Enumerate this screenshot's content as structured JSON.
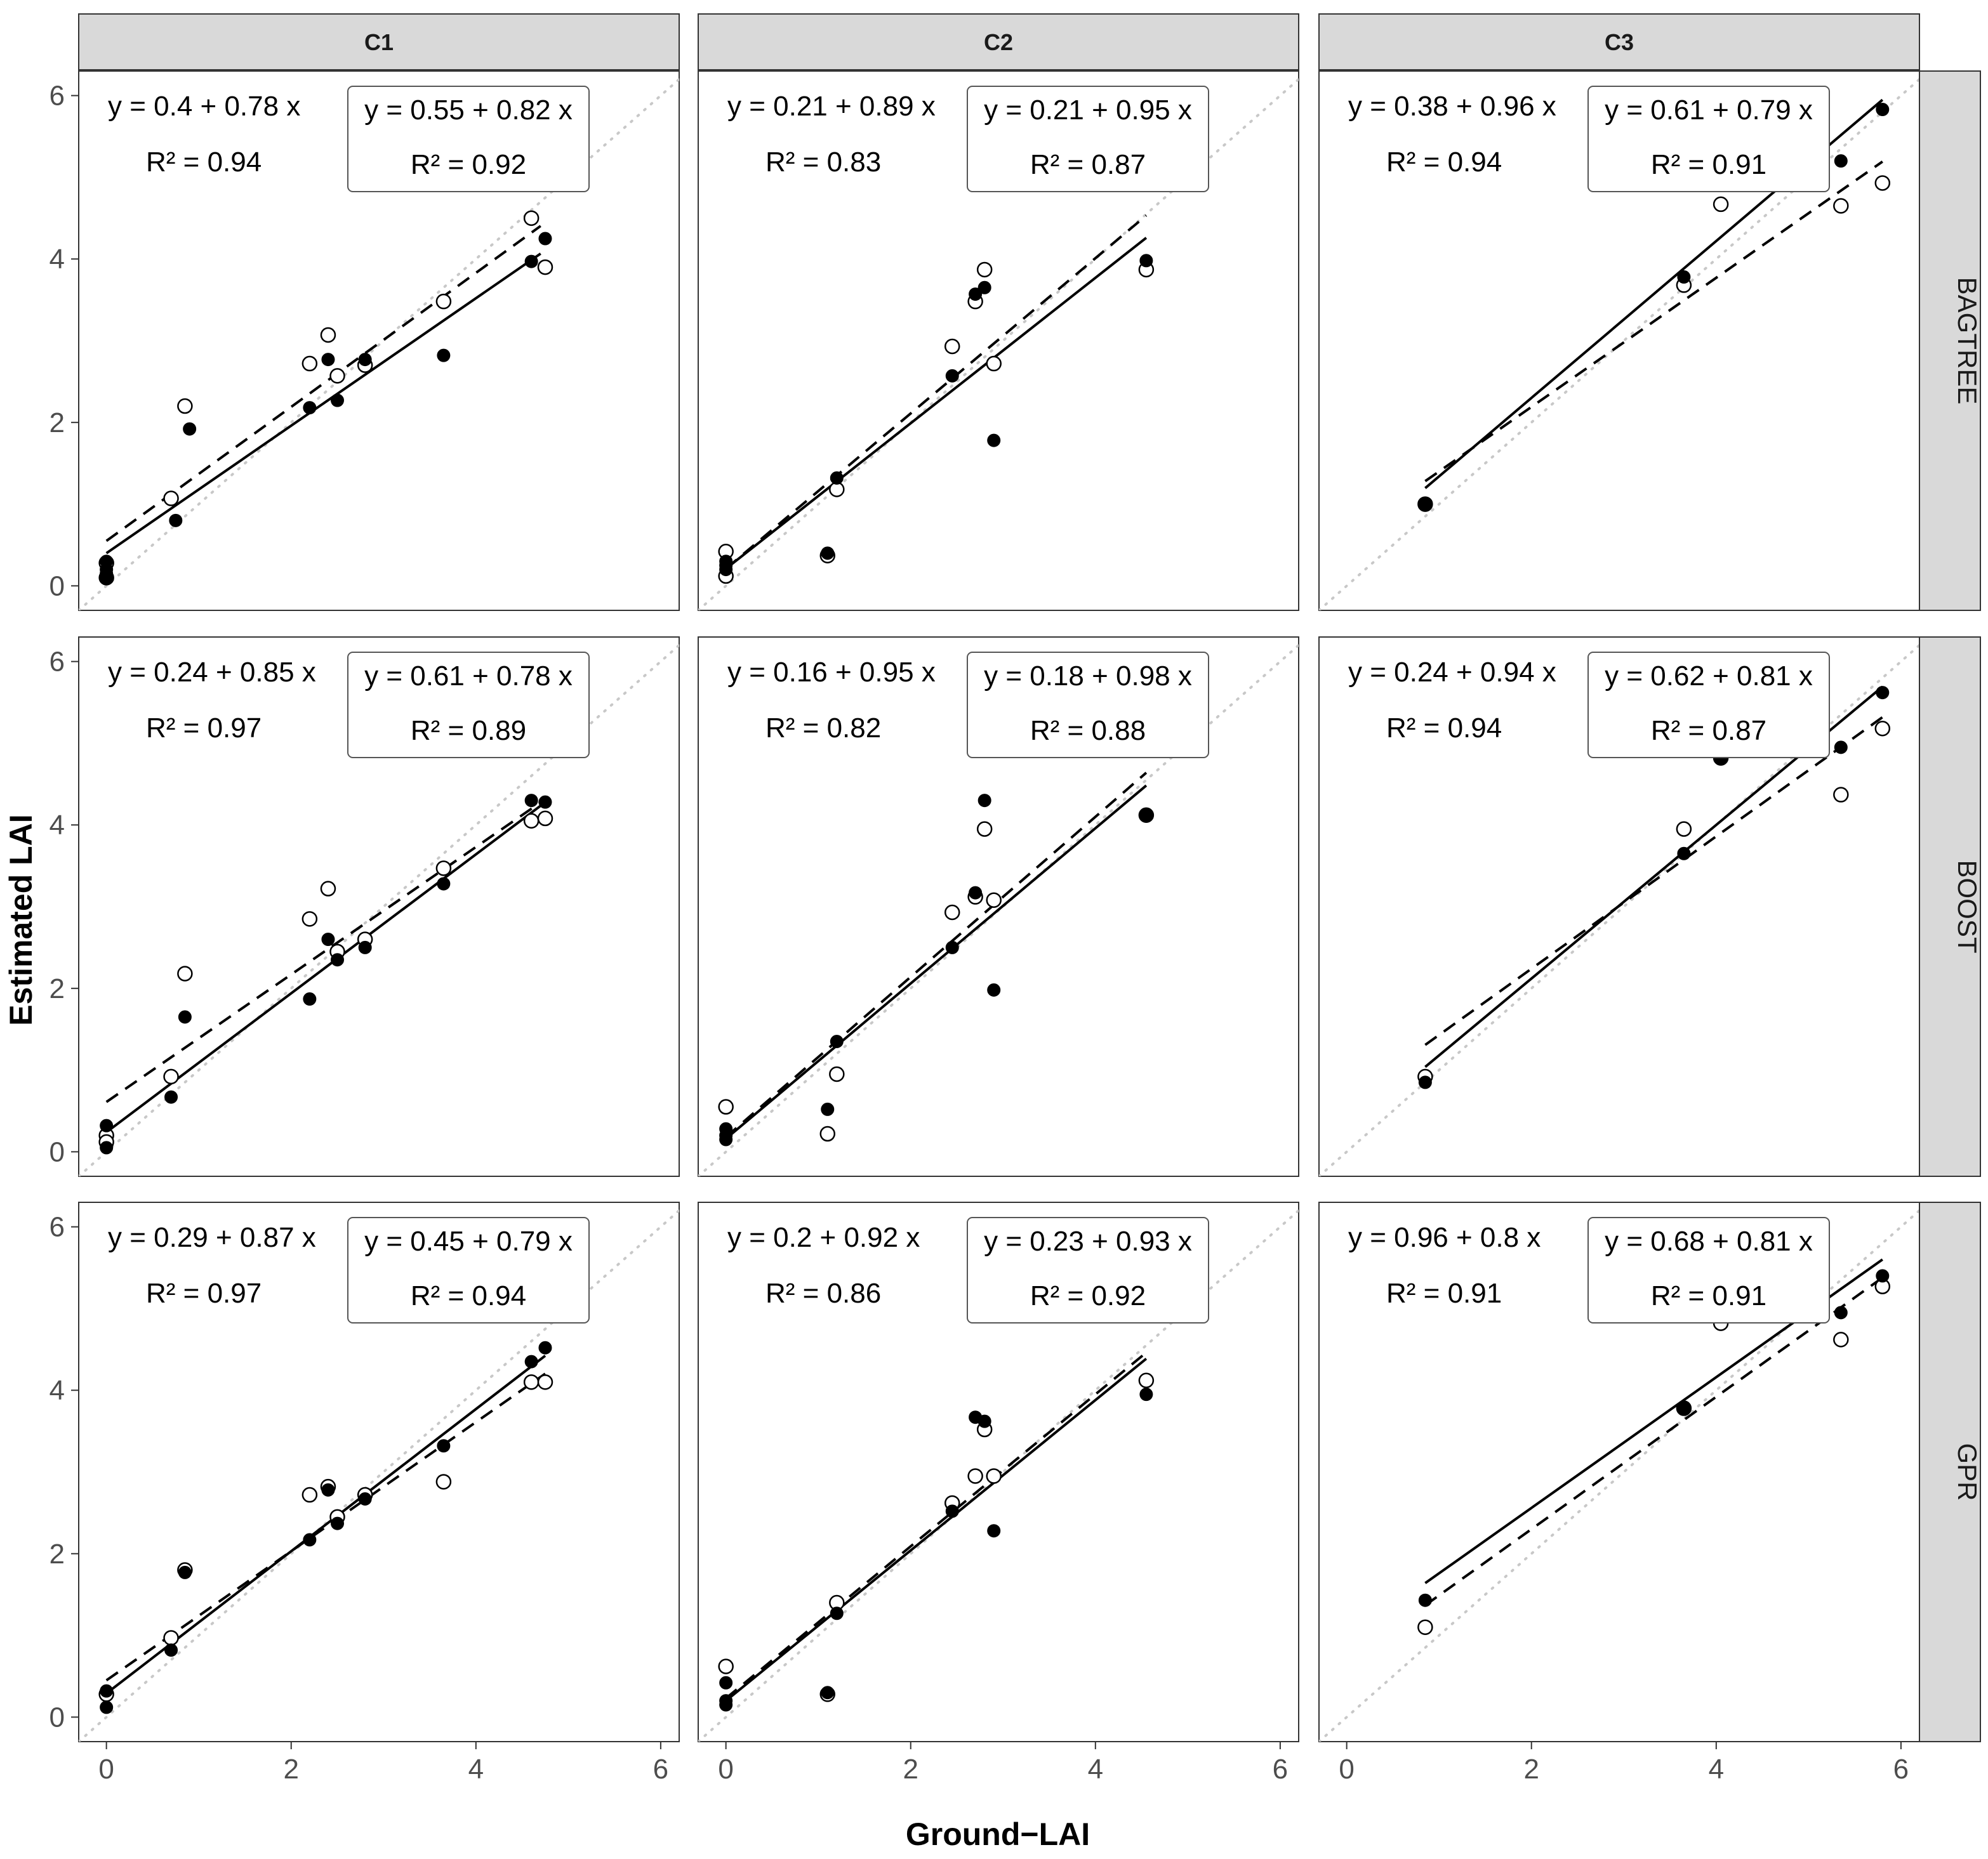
{
  "chart_data": {
    "type": "scatter",
    "xlabel": "Ground−LAI",
    "ylabel": "Estimated LAI",
    "xlim": [
      -0.3,
      6.2
    ],
    "ylim": [
      -0.3,
      6.3
    ],
    "x_ticks": [
      "0",
      "2",
      "4",
      "6"
    ],
    "y_ticks": [
      "0",
      "2",
      "4",
      "6"
    ],
    "columns": [
      "C1",
      "C2",
      "C3"
    ],
    "rows": [
      "BAGTREE",
      "BOOST",
      "GPR"
    ],
    "grid": false,
    "reference_line": "1:1 dotted grey",
    "marker_legend": "filled circles with solid fitted line; open circles with dashed fitted line (boxed equation)",
    "panels": [
      {
        "row": "BAGTREE",
        "col": "C1",
        "filled": {
          "equation": "y = 0.4 + 0.78 x",
          "r2": "R² = 0.94",
          "intercept": 0.4,
          "slope": 0.78,
          "x_range": [
            0,
            4.7
          ],
          "points": [
            [
              0,
              0.3
            ],
            [
              0,
              0.2
            ],
            [
              0,
              0.15
            ],
            [
              0,
              0.1
            ],
            [
              0.75,
              0.8
            ],
            [
              0.9,
              1.92
            ],
            [
              2.2,
              2.18
            ],
            [
              2.4,
              2.77
            ],
            [
              2.5,
              2.27
            ],
            [
              2.8,
              2.77
            ],
            [
              3.65,
              2.82
            ],
            [
              4.6,
              3.97
            ],
            [
              4.75,
              4.25
            ]
          ]
        },
        "open": {
          "equation": "y = 0.55 + 0.82 x",
          "r2": "R² = 0.92",
          "intercept": 0.55,
          "slope": 0.82,
          "x_range": [
            0,
            4.7
          ],
          "points": [
            [
              0,
              0.28
            ],
            [
              0,
              0.1
            ],
            [
              0.7,
              1.07
            ],
            [
              0.85,
              2.2
            ],
            [
              2.2,
              2.72
            ],
            [
              2.4,
              3.07
            ],
            [
              2.5,
              2.57
            ],
            [
              2.8,
              2.7
            ],
            [
              3.65,
              3.48
            ],
            [
              4.6,
              4.5
            ],
            [
              4.75,
              3.9
            ]
          ]
        }
      },
      {
        "row": "BAGTREE",
        "col": "C2",
        "filled": {
          "equation": "y = 0.21 + 0.89 x",
          "r2": "R² = 0.83",
          "intercept": 0.21,
          "slope": 0.89,
          "x_range": [
            0,
            4.55
          ],
          "points": [
            [
              0,
              0.3
            ],
            [
              0,
              0.2
            ],
            [
              0,
              0.25
            ],
            [
              1.1,
              0.4
            ],
            [
              1.2,
              1.32
            ],
            [
              2.45,
              2.57
            ],
            [
              2.7,
              3.57
            ],
            [
              2.8,
              3.65
            ],
            [
              2.9,
              1.78
            ],
            [
              4.55,
              3.98
            ]
          ]
        },
        "open": {
          "equation": "y = 0.21 + 0.95 x",
          "r2": "R² = 0.87",
          "intercept": 0.21,
          "slope": 0.95,
          "x_range": [
            0,
            4.55
          ],
          "points": [
            [
              0,
              0.42
            ],
            [
              0,
              0.12
            ],
            [
              1.1,
              0.37
            ],
            [
              1.2,
              1.18
            ],
            [
              2.45,
              2.93
            ],
            [
              2.7,
              3.48
            ],
            [
              2.8,
              3.87
            ],
            [
              2.9,
              2.72
            ],
            [
              4.55,
              3.87
            ]
          ]
        }
      },
      {
        "row": "BAGTREE",
        "col": "C3",
        "filled": {
          "equation": "y = 0.38 + 0.96 x",
          "r2": "R² = 0.94",
          "intercept": 0.38,
          "slope": 0.96,
          "x_range": [
            0.85,
            5.8
          ],
          "points": [
            [
              0.85,
              1.0
            ],
            [
              3.65,
              3.78
            ],
            [
              4.05,
              5.17
            ],
            [
              5.35,
              5.2
            ],
            [
              5.8,
              5.83
            ]
          ]
        },
        "open": {
          "equation": "y = 0.61 + 0.79 x",
          "r2": "R² = 0.91",
          "intercept": 0.61,
          "slope": 0.79,
          "x_range": [
            0.85,
            5.8
          ],
          "points": [
            [
              0.85,
              1.0
            ],
            [
              3.65,
              3.68
            ],
            [
              4.05,
              4.67
            ],
            [
              5.35,
              4.65
            ],
            [
              5.8,
              4.93
            ]
          ]
        }
      },
      {
        "row": "BOOST",
        "col": "C1",
        "filled": {
          "equation": "y = 0.24 + 0.85 x",
          "r2": "R² = 0.97",
          "intercept": 0.24,
          "slope": 0.85,
          "x_range": [
            0,
            4.75
          ],
          "points": [
            [
              0,
              0.32
            ],
            [
              0,
              0.05
            ],
            [
              0.7,
              0.67
            ],
            [
              0.85,
              1.65
            ],
            [
              2.2,
              1.87
            ],
            [
              2.4,
              2.6
            ],
            [
              2.5,
              2.35
            ],
            [
              2.8,
              2.5
            ],
            [
              3.65,
              3.28
            ],
            [
              4.6,
              4.3
            ],
            [
              4.75,
              4.28
            ]
          ]
        },
        "open": {
          "equation": "y = 0.61 + 0.78 x",
          "r2": "R² = 0.89",
          "intercept": 0.61,
          "slope": 0.78,
          "x_range": [
            0,
            4.75
          ],
          "points": [
            [
              0,
              0.2
            ],
            [
              0,
              0.12
            ],
            [
              0.7,
              0.92
            ],
            [
              0.85,
              2.18
            ],
            [
              2.2,
              2.85
            ],
            [
              2.4,
              3.22
            ],
            [
              2.5,
              2.45
            ],
            [
              2.8,
              2.6
            ],
            [
              3.65,
              3.47
            ],
            [
              4.6,
              4.05
            ],
            [
              4.75,
              4.08
            ]
          ]
        }
      },
      {
        "row": "BOOST",
        "col": "C2",
        "filled": {
          "equation": "y = 0.16 + 0.95 x",
          "r2": "R² = 0.82",
          "intercept": 0.16,
          "slope": 0.95,
          "x_range": [
            0,
            4.55
          ],
          "points": [
            [
              0,
              0.28
            ],
            [
              0,
              0.2
            ],
            [
              0,
              0.15
            ],
            [
              1.1,
              0.52
            ],
            [
              1.2,
              1.35
            ],
            [
              2.45,
              2.5
            ],
            [
              2.7,
              3.17
            ],
            [
              2.8,
              4.3
            ],
            [
              2.9,
              1.98
            ],
            [
              4.55,
              4.12
            ]
          ]
        },
        "open": {
          "equation": "y = 0.18 + 0.98 x",
          "r2": "R² = 0.88",
          "intercept": 0.18,
          "slope": 0.98,
          "x_range": [
            0,
            4.55
          ],
          "points": [
            [
              0,
              0.55
            ],
            [
              1.1,
              0.22
            ],
            [
              1.2,
              0.95
            ],
            [
              2.45,
              2.93
            ],
            [
              2.7,
              3.12
            ],
            [
              2.8,
              3.95
            ],
            [
              2.9,
              3.08
            ],
            [
              4.55,
              4.12
            ]
          ]
        }
      },
      {
        "row": "BOOST",
        "col": "C3",
        "filled": {
          "equation": "y = 0.24 + 0.94 x",
          "r2": "R² = 0.94",
          "intercept": 0.24,
          "slope": 0.94,
          "x_range": [
            0.85,
            5.8
          ],
          "points": [
            [
              0.85,
              0.85
            ],
            [
              3.65,
              3.65
            ],
            [
              4.05,
              4.82
            ],
            [
              5.35,
              4.95
            ],
            [
              5.8,
              5.62
            ]
          ]
        },
        "open": {
          "equation": "y = 0.62 + 0.81 x",
          "r2": "R² = 0.87",
          "intercept": 0.62,
          "slope": 0.81,
          "x_range": [
            0.85,
            5.8
          ],
          "points": [
            [
              0.85,
              0.92
            ],
            [
              3.65,
              3.95
            ],
            [
              4.05,
              4.82
            ],
            [
              5.35,
              4.37
            ],
            [
              5.8,
              5.18
            ]
          ]
        }
      },
      {
        "row": "GPR",
        "col": "C1",
        "filled": {
          "equation": "y = 0.29 + 0.87 x",
          "r2": "R² = 0.97",
          "intercept": 0.29,
          "slope": 0.87,
          "x_range": [
            0,
            4.75
          ],
          "points": [
            [
              0,
              0.32
            ],
            [
              0,
              0.12
            ],
            [
              0.7,
              0.82
            ],
            [
              0.85,
              1.77
            ],
            [
              2.2,
              2.17
            ],
            [
              2.4,
              2.78
            ],
            [
              2.5,
              2.37
            ],
            [
              2.8,
              2.67
            ],
            [
              3.65,
              3.32
            ],
            [
              4.6,
              4.35
            ],
            [
              4.75,
              4.52
            ]
          ]
        },
        "open": {
          "equation": "y = 0.45 + 0.79 x",
          "r2": "R² = 0.94",
          "intercept": 0.45,
          "slope": 0.79,
          "x_range": [
            0,
            4.75
          ],
          "points": [
            [
              0,
              0.28
            ],
            [
              0.7,
              0.97
            ],
            [
              0.85,
              1.8
            ],
            [
              2.2,
              2.72
            ],
            [
              2.4,
              2.82
            ],
            [
              2.5,
              2.45
            ],
            [
              2.8,
              2.72
            ],
            [
              3.65,
              2.88
            ],
            [
              4.6,
              4.1
            ],
            [
              4.75,
              4.1
            ]
          ]
        }
      },
      {
        "row": "GPR",
        "col": "C2",
        "filled": {
          "equation": "y = 0.2 + 0.92 x",
          "r2": "R² = 0.86",
          "intercept": 0.2,
          "slope": 0.92,
          "x_range": [
            0,
            4.55
          ],
          "points": [
            [
              0,
              0.42
            ],
            [
              0,
              0.2
            ],
            [
              0,
              0.15
            ],
            [
              1.1,
              0.3
            ],
            [
              1.2,
              1.27
            ],
            [
              2.45,
              2.52
            ],
            [
              2.7,
              3.67
            ],
            [
              2.8,
              3.62
            ],
            [
              2.9,
              2.28
            ],
            [
              4.55,
              3.95
            ]
          ]
        },
        "open": {
          "equation": "y = 0.23 + 0.93 x",
          "r2": "R² = 0.92",
          "intercept": 0.23,
          "slope": 0.93,
          "x_range": [
            0,
            4.55
          ],
          "points": [
            [
              0,
              0.62
            ],
            [
              1.1,
              0.28
            ],
            [
              1.2,
              1.4
            ],
            [
              2.45,
              2.62
            ],
            [
              2.7,
              2.95
            ],
            [
              2.8,
              3.52
            ],
            [
              2.9,
              2.95
            ],
            [
              4.55,
              4.12
            ]
          ]
        }
      },
      {
        "row": "GPR",
        "col": "C3",
        "filled": {
          "equation": "y = 0.96 + 0.8 x",
          "r2": "R² = 0.91",
          "intercept": 0.96,
          "slope": 0.8,
          "x_range": [
            0.85,
            5.8
          ],
          "points": [
            [
              0.85,
              1.43
            ],
            [
              3.65,
              3.78
            ],
            [
              4.05,
              5.1
            ],
            [
              5.35,
              4.95
            ],
            [
              5.8,
              5.4
            ]
          ]
        },
        "open": {
          "equation": "y = 0.68 + 0.81 x",
          "r2": "R² = 0.91",
          "intercept": 0.68,
          "slope": 0.81,
          "x_range": [
            0.85,
            5.8
          ],
          "points": [
            [
              0.85,
              1.1
            ],
            [
              3.65,
              3.78
            ],
            [
              4.05,
              4.82
            ],
            [
              5.35,
              4.62
            ],
            [
              5.8,
              5.27
            ]
          ]
        }
      }
    ]
  }
}
